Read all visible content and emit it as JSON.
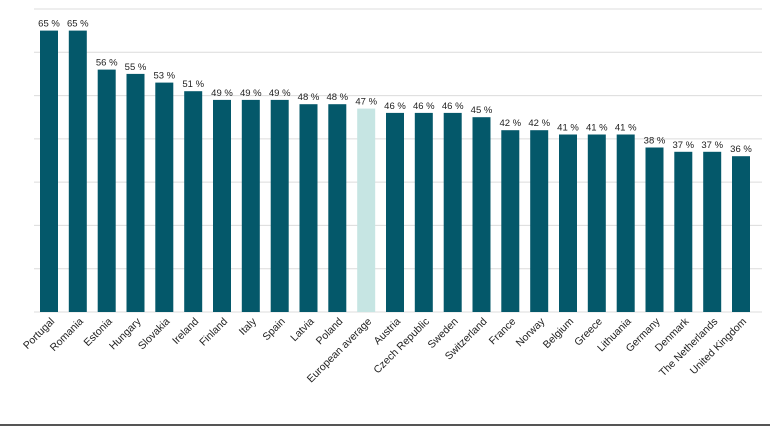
{
  "chart_data": {
    "type": "bar",
    "title": "",
    "xlabel": "",
    "ylabel": "",
    "ylim": [
      0,
      70
    ],
    "grid": true,
    "legend": "none",
    "value_suffix": " %",
    "categories": [
      "Portugal",
      "Romania",
      "Estonia",
      "Hungary",
      "Slovakia",
      "Ireland",
      "Finland",
      "Italy",
      "Spain",
      "Latvia",
      "Poland",
      "European average",
      "Austria",
      "Czech Republic",
      "Sweden",
      "Switzerland",
      "France",
      "Norway",
      "Belgium",
      "Greece",
      "Lithuania",
      "Germany",
      "Denmark",
      "The Netherlands",
      "United Kingdom"
    ],
    "values": [
      65,
      65,
      56,
      55,
      53,
      51,
      49,
      49,
      49,
      48,
      48,
      47,
      46,
      46,
      46,
      45,
      42,
      42,
      41,
      41,
      41,
      38,
      37,
      37,
      36
    ],
    "highlight_category": "European average",
    "colors": {
      "bar": "#04586a",
      "highlight": "#c6e5e3",
      "grid": "#dcdcdc"
    }
  }
}
